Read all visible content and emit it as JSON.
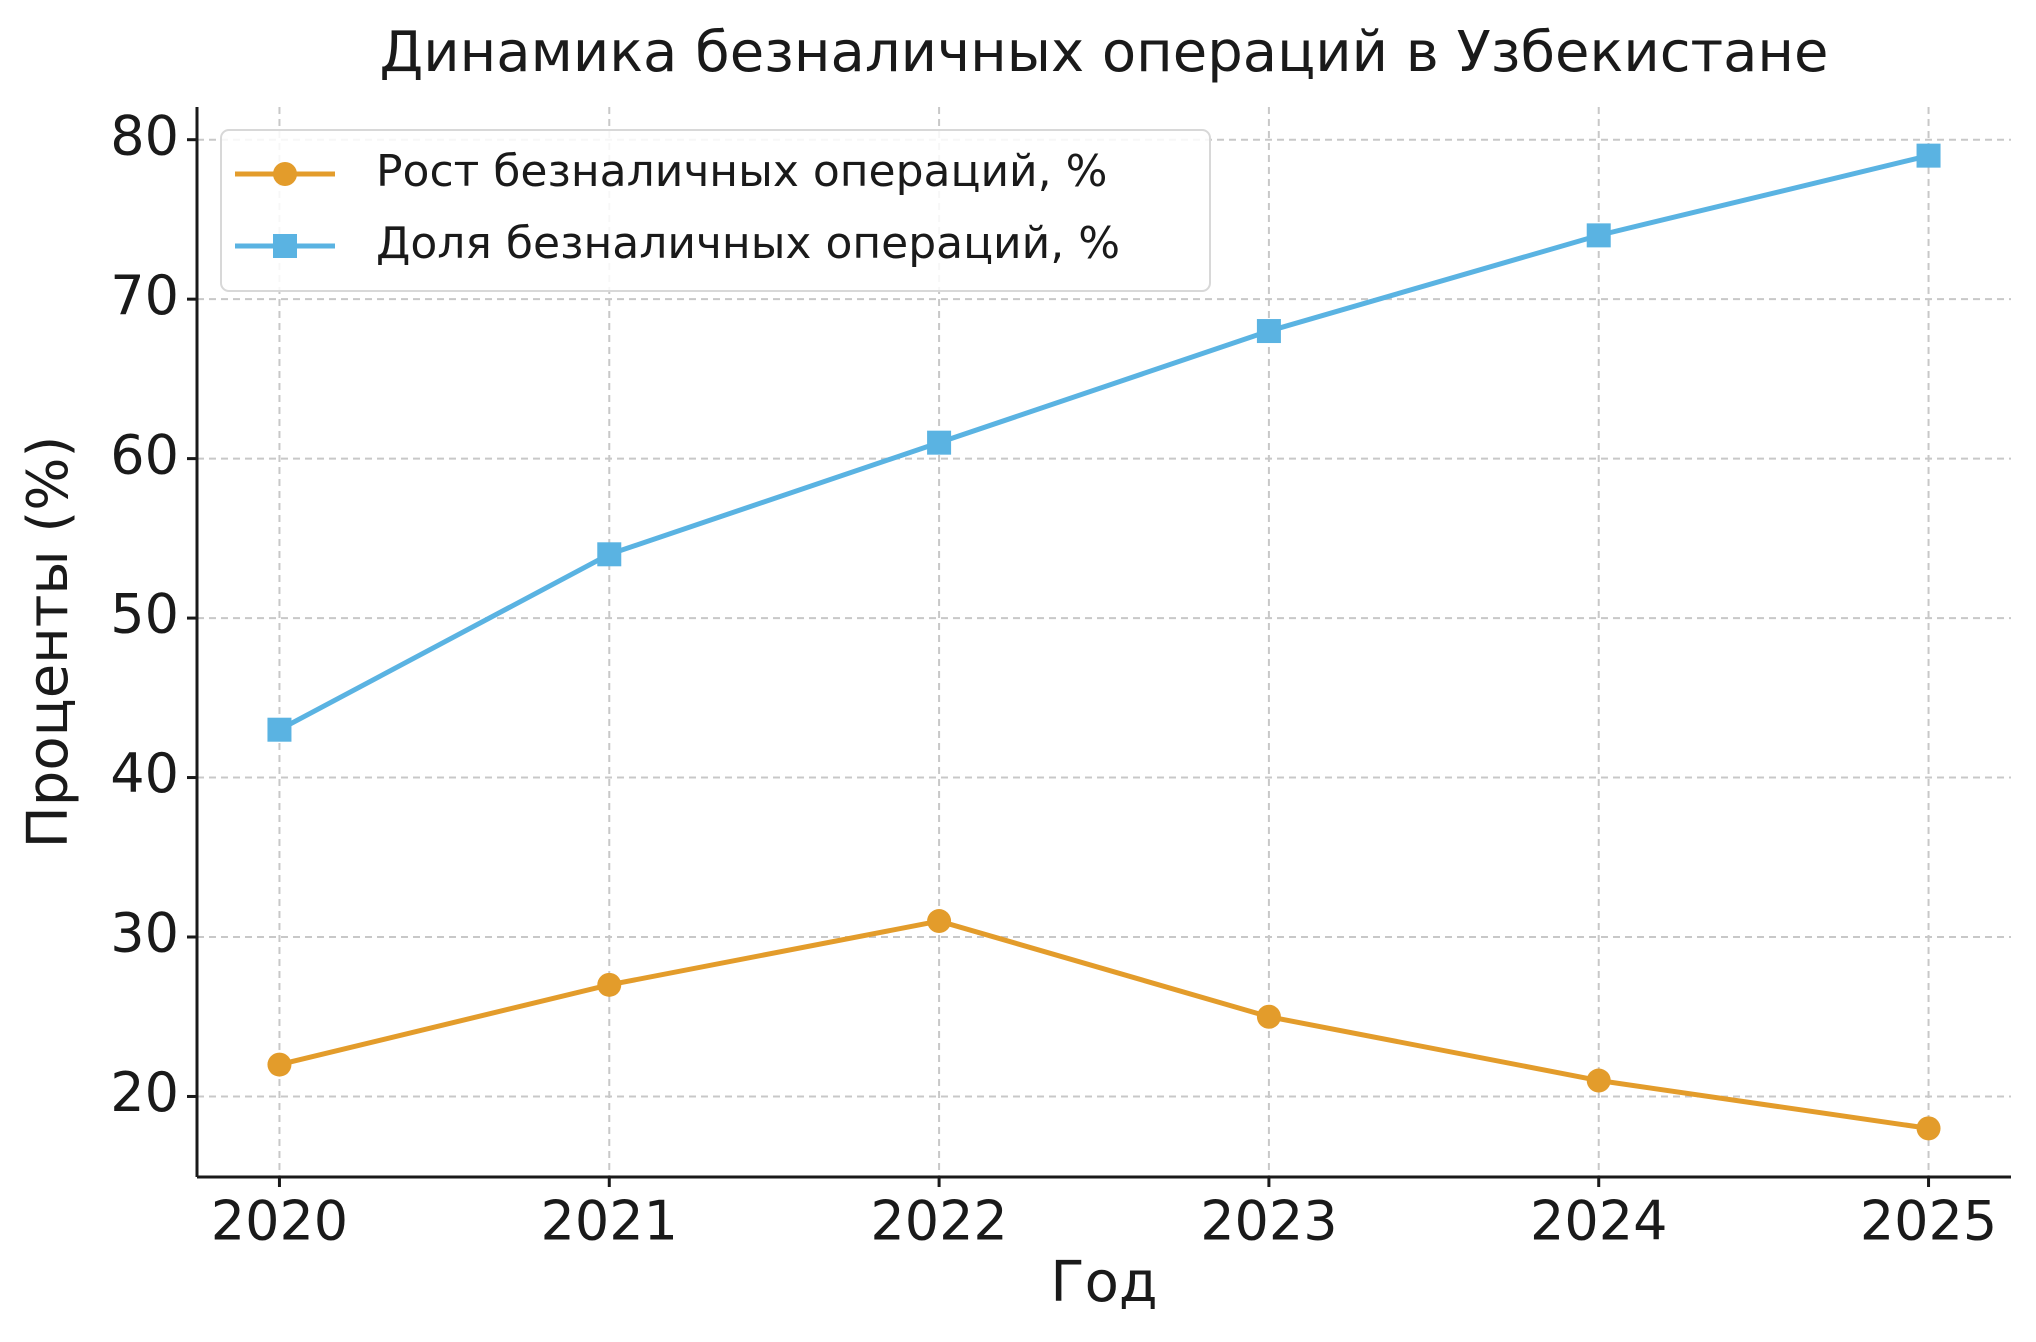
{
  "chart_data": {
    "type": "line",
    "title": "Динамика безналичных операций в Узбекистане",
    "x_label": "Год",
    "y_label": "Проценты (%)",
    "x": [
      2020,
      2021,
      2022,
      2023,
      2024,
      2025
    ],
    "series": [
      {
        "name": "Рост безналичных операций, %",
        "color": "#e39c2b",
        "marker": "circle",
        "values": [
          22,
          27,
          31,
          25,
          21,
          18
        ]
      },
      {
        "name": "Доля безналичных операций, %",
        "color": "#5ab3e2",
        "marker": "square",
        "values": [
          43,
          54,
          61,
          68,
          74,
          79
        ]
      }
    ],
    "xlim": [
      2019.75,
      2025.25
    ],
    "xticks": [
      2020,
      2021,
      2022,
      2023,
      2024,
      2025
    ],
    "ylim": [
      14.95,
      82.05
    ],
    "yticks": [
      20,
      30,
      40,
      50,
      60,
      70,
      80
    ],
    "grid": true,
    "legend": "upper left"
  }
}
